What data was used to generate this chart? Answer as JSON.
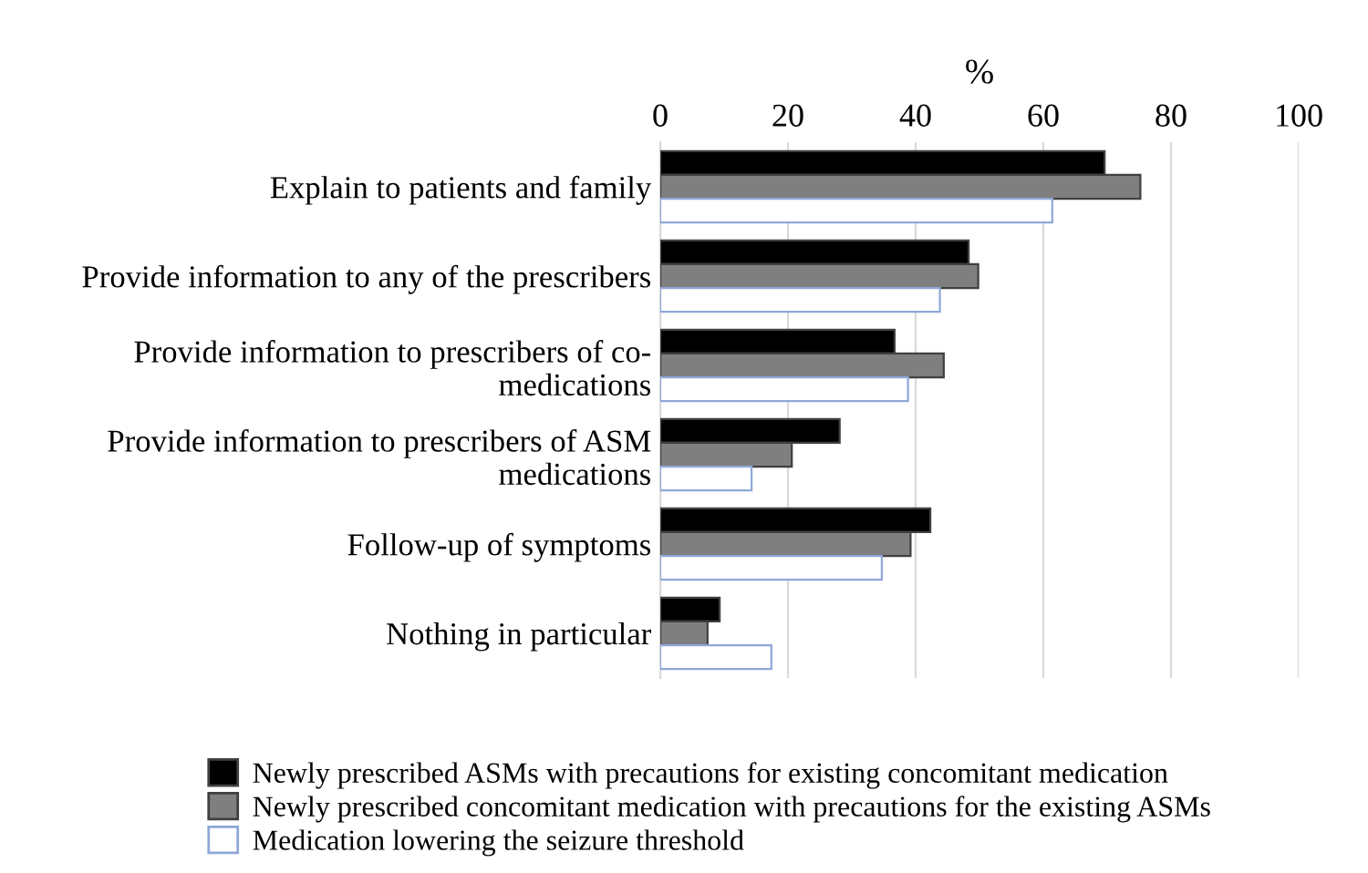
{
  "chart_data": {
    "type": "bar",
    "orientation": "horizontal",
    "xlabel": "%",
    "categories": [
      "Explain to patients and family",
      "Provide information to any of the prescribers",
      "Provide information to prescribers of co-\nmedications",
      "Provide information to prescribers of ASM\nmedications",
      "Follow-up of symptoms",
      "Nothing in particular"
    ],
    "series": [
      {
        "name": "Newly prescribed ASMs with precautions for existing concomitant medication",
        "color": "#000000",
        "values": [
          69.6,
          48.3,
          36.7,
          28.1,
          42.3,
          9.3
        ]
      },
      {
        "name": "Newly prescribed concomitant medication with precautions for the existing ASMs",
        "color": "#7f7f7f",
        "values": [
          75.2,
          49.8,
          44.4,
          20.6,
          39.2,
          7.4
        ]
      },
      {
        "name": "Medication lowering the seizure threshold",
        "color": "#ffffff",
        "values": [
          61.4,
          43.8,
          38.8,
          14.3,
          34.7,
          17.4
        ]
      }
    ],
    "xlim": [
      0,
      100
    ],
    "xticks": [
      0,
      20,
      40,
      60,
      80,
      100
    ],
    "grid": "x",
    "legend": "bottom"
  }
}
